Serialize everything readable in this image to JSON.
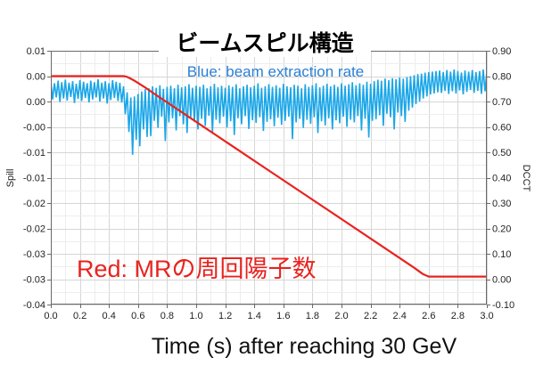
{
  "chart_data": {
    "type": "line",
    "title": "ビームスピル構造",
    "xlabel": "Time (s) after reaching 30 GeV",
    "grid": true,
    "minor_grid": true,
    "x_axis": {
      "range": [
        0.0,
        3.0
      ],
      "ticks": [
        0.0,
        0.2,
        0.4,
        0.6,
        0.8,
        1.0,
        1.2,
        1.4,
        1.6,
        1.8,
        2.0,
        2.2,
        2.4,
        2.6,
        2.8,
        3.0
      ],
      "tick_labels": [
        "0.0",
        "0.2",
        "0.4",
        "0.6",
        "0.8",
        "1.0",
        "1.2",
        "1.4",
        "1.6",
        "1.8",
        "2.0",
        "2.2",
        "2.4",
        "2.6",
        "2.8",
        "3.0"
      ]
    },
    "y_left": {
      "label": "Spill",
      "range": [
        -0.04,
        0.01
      ],
      "ticks": [
        0.01,
        0.005,
        0.0,
        -0.005,
        -0.01,
        -0.015,
        -0.02,
        -0.025,
        -0.03,
        -0.035,
        -0.04
      ],
      "tick_labels": [
        "0.01",
        "0.00",
        "0.00",
        "-0.00",
        "-0.01",
        "-0.01",
        "-0.02",
        "-0.02",
        "-0.03",
        "-0.03",
        "-0.04"
      ],
      "series": {
        "legend": "Blue: beam extraction rate",
        "color": "#1aa6e8",
        "note_color": "#2a7fd6",
        "x_start": 0.0,
        "x_step": 0.025,
        "max": [
          0.004,
          0.0036,
          0.0041,
          0.0038,
          0.0043,
          0.0037,
          0.004,
          0.0035,
          0.0042,
          0.0039,
          0.0036,
          0.0041,
          0.0038,
          0.0044,
          0.0037,
          0.004,
          0.0036,
          0.0042,
          0.0039,
          0.0037,
          0.003,
          0.0018,
          0.0008,
          0.001,
          0.0015,
          0.002,
          0.0024,
          0.0026,
          0.003,
          0.0027,
          0.0032,
          0.0025,
          0.0029,
          0.0031,
          0.0026,
          0.0033,
          0.0028,
          0.003,
          0.0034,
          0.0027,
          0.0031,
          0.0029,
          0.0033,
          0.0026,
          0.003,
          0.0035,
          0.0028,
          0.0031,
          0.0027,
          0.0032,
          0.0029,
          0.0034,
          0.0026,
          0.003,
          0.0033,
          0.0028,
          0.0031,
          0.0036,
          0.0027,
          0.003,
          0.0034,
          0.0029,
          0.0032,
          0.0027,
          0.0035,
          0.003,
          0.0028,
          0.0033,
          0.0031,
          0.0026,
          0.0034,
          0.0029,
          0.0032,
          0.0036,
          0.0028,
          0.0031,
          0.0035,
          0.003,
          0.0033,
          0.0029,
          0.0036,
          0.0031,
          0.0034,
          0.0038,
          0.0032,
          0.0036,
          0.0033,
          0.0039,
          0.0035,
          0.004,
          0.0043,
          0.0041,
          0.0045,
          0.0042,
          0.0046,
          0.0044,
          0.0047,
          0.0045,
          0.0048,
          0.005,
          0.0052,
          0.0054,
          0.0055,
          0.0057,
          0.0058,
          0.0059,
          0.006,
          0.0061,
          0.0058,
          0.0062,
          0.0059,
          0.0063,
          0.006,
          0.0057,
          0.0061,
          0.0059,
          0.0062,
          0.0058,
          0.006,
          0.0063,
          0.0059
        ],
        "min": [
          0.0004,
          0.0008,
          -0.0001,
          0.0006,
          0.0002,
          0.0009,
          -0.0003,
          0.0005,
          0.0001,
          0.0007,
          -0.0002,
          0.0004,
          0.0008,
          0.0,
          0.0006,
          -0.0004,
          0.0003,
          0.0007,
          0.0001,
          -0.0002,
          -0.0025,
          -0.006,
          -0.0105,
          -0.0075,
          -0.0088,
          -0.0055,
          -0.007,
          -0.0068,
          -0.0038,
          -0.0052,
          -0.003,
          -0.0078,
          -0.0041,
          -0.0033,
          -0.0057,
          -0.0029,
          -0.0045,
          -0.0062,
          -0.0031,
          -0.004,
          -0.0055,
          -0.0034,
          -0.0048,
          -0.0028,
          -0.006,
          -0.0036,
          -0.0043,
          -0.003,
          -0.0051,
          -0.0039,
          -0.0066,
          -0.0033,
          -0.0045,
          -0.0029,
          -0.0054,
          -0.0037,
          -0.0042,
          -0.0031,
          -0.0058,
          -0.004,
          -0.0035,
          -0.0049,
          -0.0032,
          -0.0046,
          -0.0038,
          -0.003,
          -0.0074,
          -0.0041,
          -0.0034,
          -0.0052,
          -0.0036,
          -0.0044,
          -0.0031,
          -0.0062,
          -0.0039,
          -0.0047,
          -0.0033,
          -0.0055,
          -0.0037,
          -0.0043,
          -0.003,
          -0.005,
          -0.0036,
          -0.0041,
          -0.0029,
          -0.0057,
          -0.0034,
          -0.0071,
          -0.0038,
          -0.0035,
          -0.0027,
          -0.0048,
          -0.0024,
          -0.0031,
          -0.0055,
          -0.0022,
          -0.0029,
          -0.004,
          -0.0018,
          -0.0012,
          -0.0005,
          0.0,
          0.0006,
          0.001,
          0.0014,
          0.0016,
          0.0018,
          0.0017,
          0.0021,
          0.0015,
          0.002,
          0.0016,
          0.0022,
          0.0014,
          0.0019,
          0.0023,
          0.0017,
          0.0021,
          0.0015,
          0.002,
          0.0018
        ]
      }
    },
    "y_right": {
      "label": "DCCT",
      "range": [
        -0.1,
        0.9
      ],
      "ticks": [
        0.9,
        0.8,
        0.7,
        0.6,
        0.5,
        0.4,
        0.3,
        0.2,
        0.1,
        0.0,
        -0.1
      ],
      "tick_labels": [
        "0.90",
        "0.80",
        "0.70",
        "0.60",
        "0.50",
        "0.40",
        "0.30",
        "0.20",
        "0.10",
        "0.00",
        "-0.10"
      ],
      "series": {
        "legend": "Red: MRの周回陽子数",
        "color": "#e8231f",
        "x": [
          0.0,
          0.5,
          0.52,
          0.54,
          0.57,
          0.6,
          0.65,
          0.7,
          1.0,
          1.5,
          2.0,
          2.5,
          2.56,
          2.6,
          3.0
        ],
        "y": [
          0.8,
          0.8,
          0.798,
          0.793,
          0.784,
          0.773,
          0.755,
          0.735,
          0.62,
          0.428,
          0.237,
          0.045,
          0.02,
          0.01,
          0.01
        ]
      }
    }
  }
}
